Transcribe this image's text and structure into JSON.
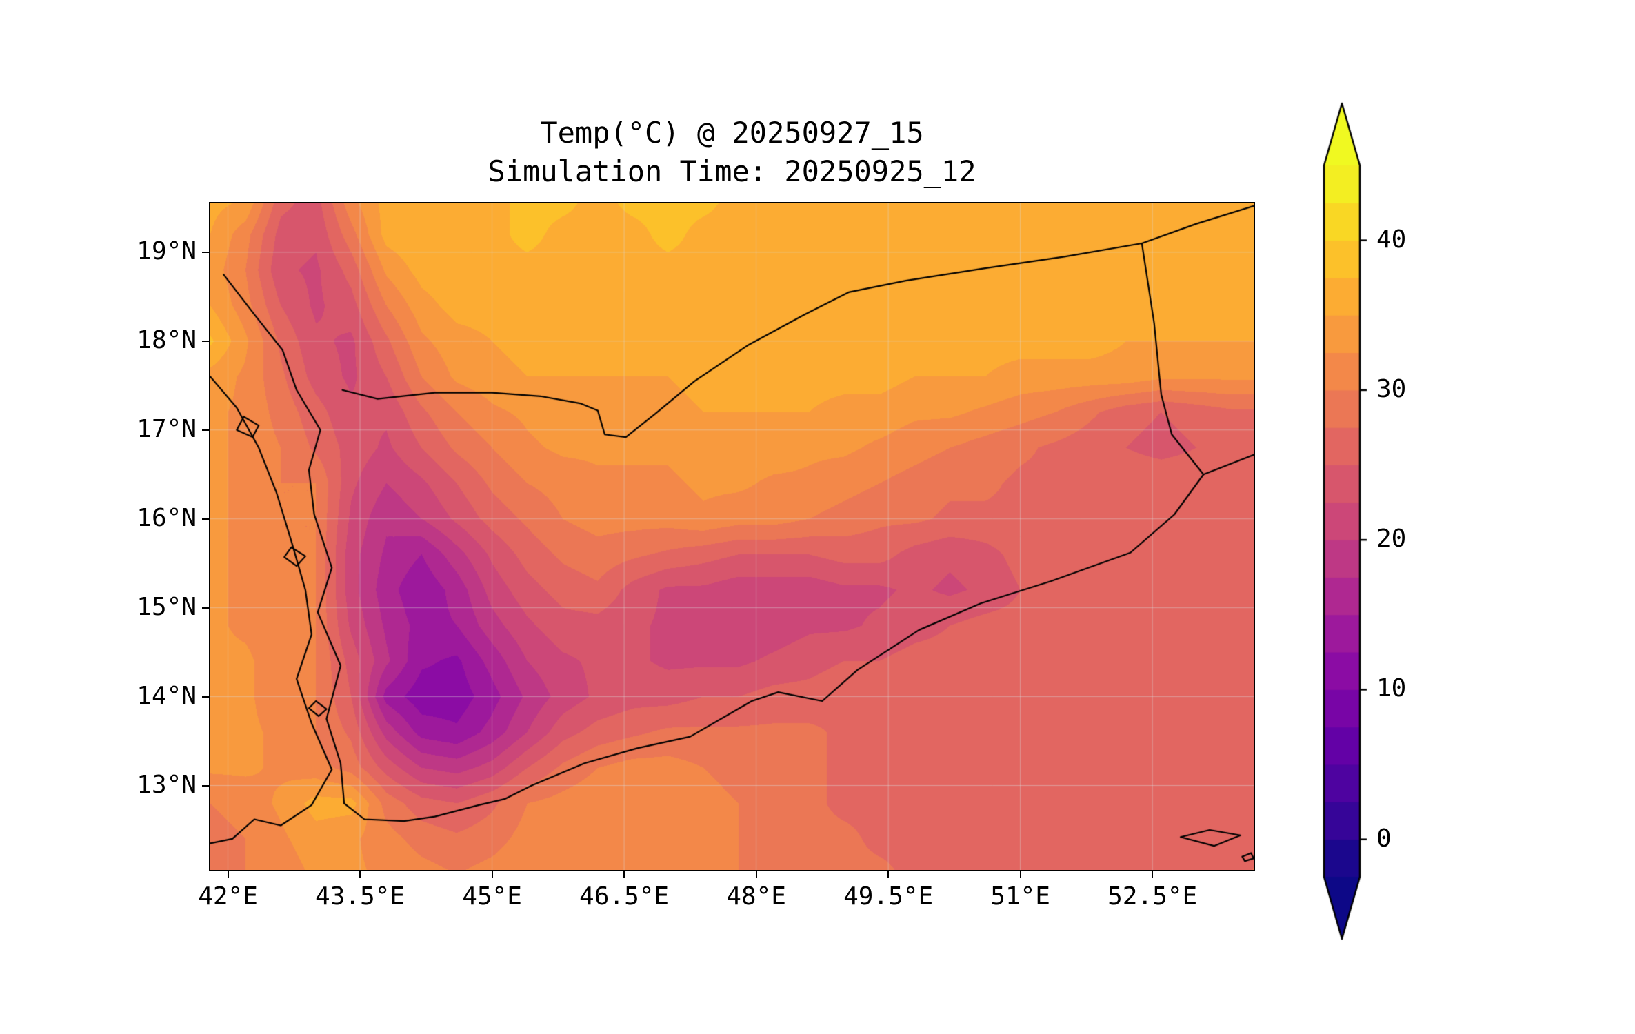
{
  "figure": {
    "title_line1": "Temp(°C) @ 20250927_15",
    "title_line2": "Simulation Time: 20250925_12"
  },
  "chart_data": {
    "type": "heatmap",
    "title": "Temp(°C) @ 20250927_15",
    "subtitle": "Simulation Time: 20250925_12",
    "variable": "Temp(°C)",
    "valid_time": "20250927_15",
    "simulation_time": "20250925_12",
    "x_axis": {
      "range": [
        41.8,
        53.65
      ],
      "tick_values": [
        42,
        43.5,
        45,
        46.5,
        48,
        49.5,
        51,
        52.5
      ],
      "tick_labels": [
        "42°E",
        "43.5°E",
        "45°E",
        "46.5°E",
        "48°E",
        "49.5°E",
        "51°E",
        "52.5°E"
      ]
    },
    "y_axis": {
      "range": [
        12.05,
        19.55
      ],
      "tick_values": [
        19,
        18,
        17,
        16,
        15,
        14,
        13
      ],
      "tick_labels": [
        "19°N",
        "18°N",
        "17°N",
        "16°N",
        "15°N",
        "14°N",
        "13°N"
      ]
    },
    "colorbar": {
      "tick_values": [
        40,
        30,
        20,
        10,
        0
      ],
      "tick_labels": [
        "40",
        "30",
        "20",
        "10",
        "0"
      ],
      "level_min": -2.5,
      "level_max": 45,
      "level_step": 2.5,
      "band_colors": [
        "#1b078d",
        "#360598",
        "#4e03a0",
        "#6301a6",
        "#7805a6",
        "#8b0ca4",
        "#9d199c",
        "#af2891",
        "#be3885",
        "#cc4778",
        "#d7566c",
        "#e26661",
        "#eb7755",
        "#f38849",
        "#f89a3e",
        "#fcac33",
        "#fcc12a",
        "#f9d724",
        "#f3ee22"
      ],
      "under_color": "#0d0887",
      "over_color": "#f0f921"
    },
    "grid": {
      "lon_start": 41.8,
      "lon_step": 0.4,
      "lat_start": 19.6,
      "lat_step": -0.4,
      "values": [
        [
          36,
          35,
          26,
          24,
          32,
          36,
          37,
          37,
          37,
          38,
          38,
          37,
          38,
          38,
          38,
          37,
          37,
          37,
          37,
          37,
          37,
          37,
          37,
          37,
          37,
          37,
          37,
          36,
          36,
          36,
          36
        ],
        [
          35,
          31,
          24,
          23,
          29,
          36,
          37,
          37,
          37,
          38,
          37,
          37,
          37,
          38,
          37,
          37,
          37,
          37,
          37,
          37,
          37,
          37,
          37,
          37,
          37,
          37,
          36,
          36,
          36,
          36,
          36
        ],
        [
          34,
          30,
          23,
          22,
          26,
          33,
          36,
          37,
          37,
          37,
          37,
          37,
          37,
          37,
          37,
          37,
          37,
          37,
          37,
          37,
          37,
          37,
          37,
          36,
          36,
          36,
          36,
          36,
          36,
          36,
          36
        ],
        [
          35,
          31,
          25,
          22,
          24,
          30,
          34,
          36,
          36,
          36,
          36,
          36,
          36,
          36,
          37,
          37,
          37,
          37,
          37,
          37,
          37,
          36,
          36,
          36,
          36,
          36,
          36,
          36,
          36,
          36,
          36
        ],
        [
          38,
          33,
          27,
          23,
          22,
          27,
          32,
          34,
          35,
          36,
          36,
          36,
          36,
          36,
          36,
          36,
          36,
          37,
          37,
          36,
          36,
          36,
          36,
          36,
          36,
          36,
          35,
          35,
          35,
          35,
          35
        ],
        [
          34,
          32,
          28,
          24,
          22,
          25,
          30,
          33,
          34,
          35,
          35,
          35,
          35,
          35,
          36,
          36,
          36,
          36,
          36,
          36,
          35,
          35,
          35,
          34,
          34,
          34,
          34,
          33,
          33,
          33,
          33
        ],
        [
          33,
          32,
          29,
          26,
          23,
          23,
          27,
          30,
          32,
          33,
          34,
          34,
          34,
          34,
          35,
          35,
          35,
          35,
          34,
          34,
          33,
          33,
          32,
          31,
          30,
          28,
          26,
          25,
          26,
          27,
          27
        ],
        [
          33,
          32,
          30,
          27,
          24,
          22,
          25,
          28,
          30,
          32,
          33,
          33,
          33,
          33,
          34,
          34,
          34,
          33,
          33,
          32,
          31,
          30,
          29,
          28,
          27,
          26,
          25,
          24,
          25,
          26,
          27
        ],
        [
          33,
          32,
          30,
          30,
          23,
          20,
          22,
          25,
          28,
          30,
          31,
          32,
          32,
          32,
          33,
          33,
          32,
          32,
          31,
          30,
          29,
          28,
          28,
          27,
          27,
          27,
          27,
          27,
          27,
          27,
          27
        ],
        [
          33,
          32,
          30,
          30,
          22,
          18,
          20,
          23,
          26,
          28,
          30,
          31,
          31,
          31,
          32,
          31,
          31,
          30,
          29,
          28,
          28,
          27,
          27,
          27,
          27,
          27,
          27,
          27,
          27,
          27,
          27
        ],
        [
          33,
          32,
          30,
          30,
          21,
          17,
          15,
          19,
          23,
          26,
          28,
          29,
          28,
          27,
          26,
          25,
          25,
          25,
          26,
          26,
          24,
          23,
          24,
          26,
          27,
          27,
          27,
          27,
          27,
          27,
          27
        ],
        [
          33,
          32,
          31,
          30,
          21,
          16,
          13,
          16,
          21,
          24,
          26,
          27,
          24,
          22,
          22,
          21,
          21,
          21,
          22,
          22,
          23,
          22,
          23,
          25,
          27,
          27,
          27,
          27,
          27,
          27,
          27
        ],
        [
          33,
          32,
          31,
          30,
          22,
          17,
          14,
          15,
          19,
          22,
          24,
          24,
          23,
          22,
          21,
          21,
          21,
          22,
          22,
          23,
          24,
          25,
          26,
          26,
          27,
          27,
          27,
          27,
          27,
          27,
          27
        ],
        [
          33,
          33,
          31,
          30,
          24,
          18,
          13,
          12,
          16,
          20,
          22,
          23,
          23,
          22,
          22,
          22,
          23,
          24,
          25,
          25,
          26,
          26,
          27,
          27,
          27,
          27,
          27,
          27,
          27,
          27,
          27
        ],
        [
          33,
          33,
          31,
          30,
          25,
          14,
          11,
          11,
          14,
          18,
          21,
          23,
          24,
          24,
          25,
          25,
          26,
          26,
          27,
          27,
          27,
          27,
          27,
          27,
          27,
          27,
          27,
          27,
          27,
          27,
          27
        ],
        [
          33,
          33,
          32,
          30,
          27,
          19,
          14,
          13,
          16,
          20,
          24,
          26,
          27,
          28,
          28,
          28,
          28,
          28,
          27,
          27,
          27,
          27,
          27,
          27,
          27,
          27,
          27,
          27,
          27,
          27,
          27
        ],
        [
          33,
          33,
          32,
          31,
          29,
          24,
          20,
          19,
          21,
          25,
          28,
          30,
          31,
          31,
          30,
          29,
          28,
          28,
          27,
          27,
          27,
          27,
          27,
          27,
          27,
          27,
          27,
          27,
          27,
          27,
          27
        ],
        [
          30,
          31,
          33,
          36,
          36,
          29,
          26,
          25,
          27,
          30,
          31,
          32,
          32,
          32,
          31,
          30,
          29,
          28,
          27,
          27,
          27,
          27,
          27,
          27,
          27,
          27,
          27,
          27,
          27,
          27,
          27
        ],
        [
          29,
          30,
          32,
          34,
          33,
          31,
          29,
          28,
          29,
          31,
          32,
          32,
          32,
          32,
          31,
          30,
          29,
          28,
          28,
          27,
          27,
          27,
          27,
          27,
          27,
          27,
          27,
          27,
          26,
          27,
          27
        ],
        [
          29,
          30,
          31,
          33,
          33,
          32,
          31,
          30,
          31,
          32,
          32,
          32,
          32,
          32,
          31,
          30,
          29,
          29,
          28,
          28,
          27,
          27,
          27,
          27,
          27,
          27,
          27,
          27,
          27,
          27,
          28
        ]
      ]
    },
    "map_outlines": {
      "coast_arabia": [
        [
          41.95,
          18.75
        ],
        [
          42.3,
          18.3
        ],
        [
          42.62,
          17.9
        ],
        [
          42.78,
          17.45
        ],
        [
          43.05,
          17.0
        ],
        [
          42.92,
          16.55
        ],
        [
          42.98,
          16.05
        ],
        [
          43.18,
          15.45
        ],
        [
          43.02,
          14.95
        ],
        [
          43.28,
          14.35
        ],
        [
          43.12,
          13.75
        ],
        [
          43.28,
          13.25
        ],
        [
          43.32,
          12.8
        ],
        [
          43.55,
          12.62
        ],
        [
          44.0,
          12.6
        ],
        [
          44.35,
          12.65
        ],
        [
          44.85,
          12.78
        ],
        [
          45.15,
          12.85
        ],
        [
          45.45,
          13.0
        ],
        [
          46.05,
          13.25
        ],
        [
          46.65,
          13.42
        ],
        [
          47.25,
          13.55
        ],
        [
          47.95,
          13.95
        ],
        [
          48.25,
          14.05
        ],
        [
          48.75,
          13.95
        ],
        [
          49.15,
          14.3
        ],
        [
          49.85,
          14.75
        ],
        [
          50.55,
          15.05
        ],
        [
          51.35,
          15.3
        ],
        [
          52.25,
          15.62
        ],
        [
          52.75,
          16.05
        ],
        [
          53.08,
          16.5
        ],
        [
          53.65,
          16.72
        ]
      ],
      "border_saudi_yemen": [
        [
          43.3,
          17.45
        ],
        [
          43.7,
          17.35
        ],
        [
          44.35,
          17.42
        ],
        [
          45.0,
          17.42
        ],
        [
          45.55,
          17.38
        ],
        [
          46.0,
          17.3
        ],
        [
          46.2,
          17.22
        ],
        [
          46.28,
          16.95
        ],
        [
          46.52,
          16.92
        ],
        [
          46.85,
          17.18
        ],
        [
          47.3,
          17.55
        ],
        [
          47.9,
          17.95
        ],
        [
          48.55,
          18.3
        ],
        [
          49.05,
          18.55
        ],
        [
          49.7,
          18.68
        ],
        [
          50.6,
          18.82
        ],
        [
          51.5,
          18.95
        ],
        [
          52.38,
          19.1
        ]
      ],
      "border_saudi_oman": [
        [
          52.38,
          19.1
        ],
        [
          53.0,
          19.32
        ],
        [
          53.65,
          19.52
        ]
      ],
      "border_yemen_oman": [
        [
          52.38,
          19.1
        ],
        [
          52.52,
          18.2
        ],
        [
          52.6,
          17.4
        ],
        [
          52.72,
          16.95
        ],
        [
          53.08,
          16.5
        ]
      ],
      "coast_africa": [
        [
          41.8,
          17.6
        ],
        [
          42.1,
          17.25
        ],
        [
          42.35,
          16.8
        ],
        [
          42.55,
          16.3
        ],
        [
          42.72,
          15.75
        ],
        [
          42.88,
          15.2
        ],
        [
          42.95,
          14.7
        ],
        [
          42.78,
          14.2
        ],
        [
          42.95,
          13.7
        ],
        [
          43.18,
          13.18
        ],
        [
          42.95,
          12.78
        ],
        [
          42.6,
          12.55
        ],
        [
          42.3,
          12.62
        ],
        [
          42.05,
          12.4
        ],
        [
          41.8,
          12.35
        ]
      ],
      "island_1": [
        [
          42.18,
          17.15
        ],
        [
          42.35,
          17.05
        ],
        [
          42.28,
          16.92
        ],
        [
          42.1,
          17.0
        ],
        [
          42.18,
          17.15
        ]
      ],
      "island_2": [
        [
          42.72,
          15.68
        ],
        [
          42.88,
          15.58
        ],
        [
          42.78,
          15.47
        ],
        [
          42.64,
          15.57
        ],
        [
          42.72,
          15.68
        ]
      ],
      "island_3": [
        [
          43.0,
          13.95
        ],
        [
          43.12,
          13.86
        ],
        [
          43.03,
          13.78
        ],
        [
          42.92,
          13.87
        ],
        [
          43.0,
          13.95
        ]
      ],
      "island_4": [
        [
          52.82,
          12.42
        ],
        [
          53.15,
          12.5
        ],
        [
          53.5,
          12.44
        ],
        [
          53.2,
          12.32
        ],
        [
          52.82,
          12.42
        ]
      ],
      "island_5": [
        [
          53.52,
          12.2
        ],
        [
          53.62,
          12.24
        ],
        [
          53.65,
          12.18
        ],
        [
          53.55,
          12.15
        ],
        [
          53.52,
          12.2
        ]
      ]
    }
  }
}
